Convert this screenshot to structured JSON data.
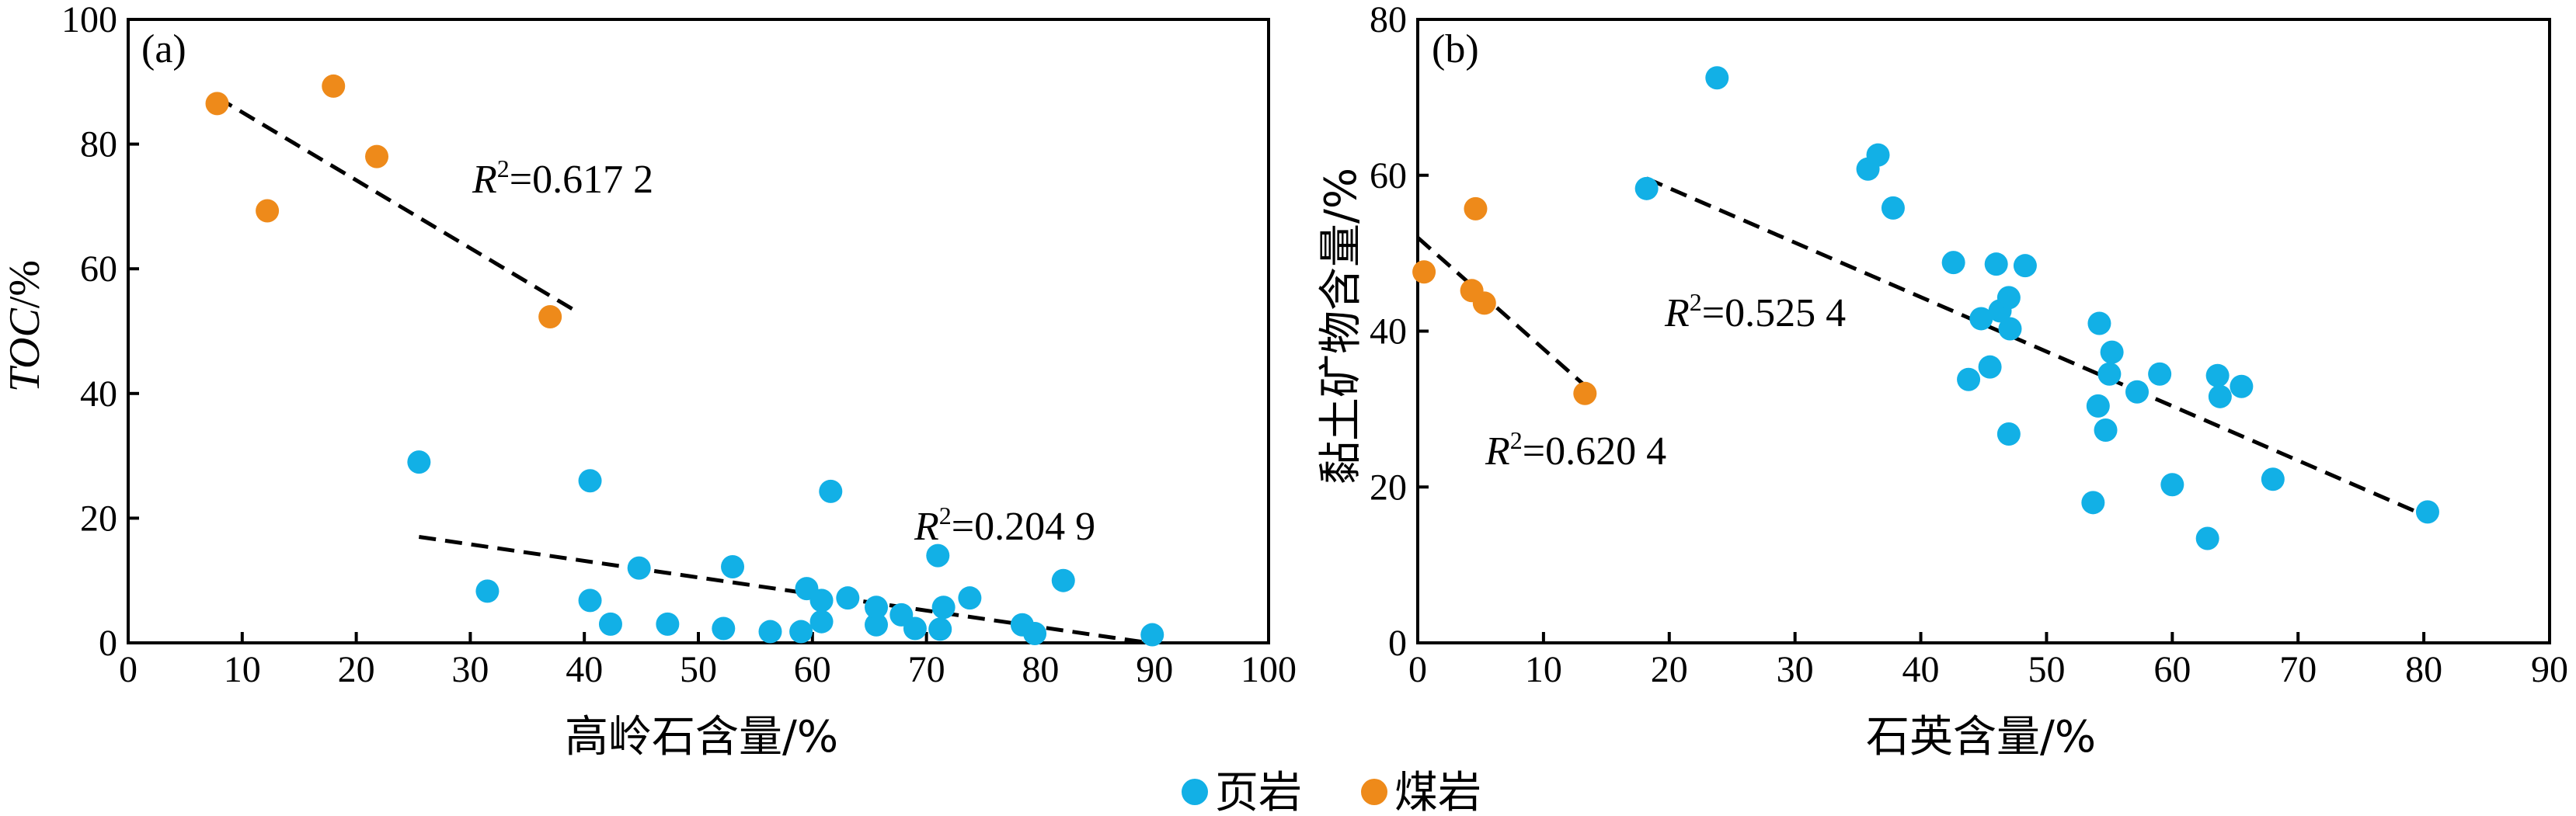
{
  "colors": {
    "shale": "#12b0e6",
    "coal": "#ee8a1a",
    "axis": "#000000"
  },
  "legend": {
    "items": [
      {
        "label": "页岩",
        "color": "#12b0e6"
      },
      {
        "label": "煤岩",
        "color": "#ee8a1a"
      }
    ]
  },
  "chart_data": [
    {
      "type": "scatter",
      "panel_label": "(a)",
      "xlabel": "高岭石含量/%",
      "ylabel_italic": "TOC",
      "ylabel_unit": "/%",
      "xlim": [
        0,
        100
      ],
      "ylim": [
        0,
        100
      ],
      "xticks": [
        0,
        10,
        20,
        30,
        40,
        50,
        60,
        70,
        80,
        90,
        100
      ],
      "yticks": [
        0,
        20,
        40,
        60,
        80,
        100
      ],
      "series": [
        {
          "name": "页岩",
          "color": "#12b0e6",
          "points": [
            [
              25.5,
              29.0
            ],
            [
              31.5,
              8.3
            ],
            [
              40.5,
              26.0
            ],
            [
              40.5,
              6.8
            ],
            [
              42.3,
              3.0
            ],
            [
              44.8,
              12.0
            ],
            [
              47.3,
              3.0
            ],
            [
              52.2,
              2.3
            ],
            [
              53.0,
              12.2
            ],
            [
              56.3,
              1.8
            ],
            [
              59.0,
              1.8
            ],
            [
              59.5,
              8.7
            ],
            [
              60.8,
              6.8
            ],
            [
              60.8,
              3.4
            ],
            [
              61.6,
              24.3
            ],
            [
              63.1,
              7.2
            ],
            [
              65.6,
              2.9
            ],
            [
              65.6,
              5.7
            ],
            [
              67.8,
              4.5
            ],
            [
              69.0,
              2.3
            ],
            [
              71.0,
              14.0
            ],
            [
              71.2,
              2.2
            ],
            [
              71.5,
              5.7
            ],
            [
              73.8,
              7.2
            ],
            [
              78.4,
              2.9
            ],
            [
              79.5,
              1.5
            ],
            [
              82.0,
              10.0
            ],
            [
              89.8,
              1.3
            ]
          ],
          "trendline": {
            "x": [
              25.5,
              89.5
            ],
            "y": [
              17.0,
              0.0
            ],
            "label": "R²=0.204 9"
          }
        },
        {
          "name": "煤岩",
          "color": "#ee8a1a",
          "points": [
            [
              7.8,
              86.5
            ],
            [
              12.2,
              69.3
            ],
            [
              18.0,
              89.3
            ],
            [
              21.8,
              78.0
            ],
            [
              37.0,
              52.3
            ]
          ],
          "trendline": {
            "x": [
              7.8,
              39.0
            ],
            "y": [
              87.5,
              53.5
            ],
            "label": "R²=0.617 2"
          }
        }
      ]
    },
    {
      "type": "scatter",
      "panel_label": "(b)",
      "xlabel": "石英含量/%",
      "ylabel": "黏土矿物含量/%",
      "xlim": [
        0,
        90
      ],
      "ylim": [
        0,
        80
      ],
      "xticks": [
        0,
        10,
        20,
        30,
        40,
        50,
        60,
        70,
        80,
        90
      ],
      "yticks": [
        0,
        20,
        40,
        60,
        80
      ],
      "series": [
        {
          "name": "页岩",
          "color": "#12b0e6",
          "points": [
            [
              18.2,
              58.3
            ],
            [
              23.8,
              72.5
            ],
            [
              35.8,
              60.8
            ],
            [
              36.6,
              62.6
            ],
            [
              37.8,
              55.8
            ],
            [
              42.6,
              48.8
            ],
            [
              43.8,
              33.8
            ],
            [
              44.8,
              41.6
            ],
            [
              45.5,
              35.4
            ],
            [
              46.0,
              48.6
            ],
            [
              46.3,
              42.6
            ],
            [
              47.0,
              44.3
            ],
            [
              47.0,
              26.8
            ],
            [
              47.1,
              40.3
            ],
            [
              48.3,
              48.4
            ],
            [
              53.7,
              18.0
            ],
            [
              54.1,
              30.4
            ],
            [
              54.2,
              41.0
            ],
            [
              54.7,
              27.3
            ],
            [
              55.0,
              34.5
            ],
            [
              55.2,
              37.3
            ],
            [
              57.2,
              32.2
            ],
            [
              59.0,
              34.5
            ],
            [
              60.0,
              20.3
            ],
            [
              62.8,
              13.4
            ],
            [
              63.6,
              34.3
            ],
            [
              63.8,
              31.6
            ],
            [
              65.5,
              32.9
            ],
            [
              68.0,
              21.0
            ],
            [
              80.3,
              16.8
            ]
          ],
          "trendline": {
            "x": [
              18.2,
              80.3
            ],
            "y": [
              59.6,
              16.2
            ],
            "label": "R²=0.525 4"
          }
        },
        {
          "name": "煤岩",
          "color": "#ee8a1a",
          "points": [
            [
              0.5,
              47.6
            ],
            [
              4.3,
              45.2
            ],
            [
              4.6,
              55.7
            ],
            [
              5.3,
              43.6
            ],
            [
              13.3,
              32.0
            ]
          ],
          "trendline": {
            "x": [
              0.0,
              13.3
            ],
            "y": [
              52.0,
              33.0
            ],
            "label": "R²=0.620 4"
          }
        }
      ]
    }
  ]
}
